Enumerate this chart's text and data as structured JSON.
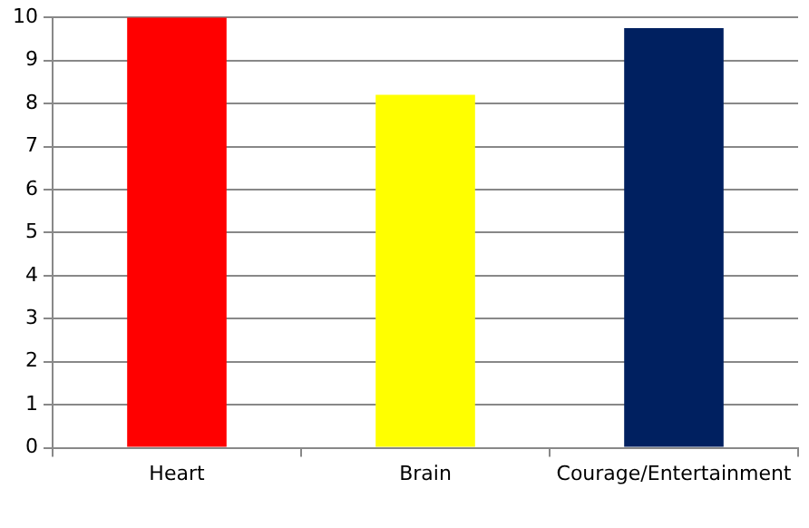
{
  "chart_data": {
    "type": "bar",
    "categories": [
      "Heart",
      "Brain",
      "Courage/Entertainment"
    ],
    "values": [
      10,
      8.2,
      9.75
    ],
    "colors": [
      "#ff0000",
      "#ffff00",
      "#002060"
    ],
    "ylim": [
      0,
      10
    ],
    "yticks": [
      0,
      1,
      2,
      3,
      4,
      5,
      6,
      7,
      8,
      9,
      10
    ],
    "grid": "y",
    "legend": false
  }
}
